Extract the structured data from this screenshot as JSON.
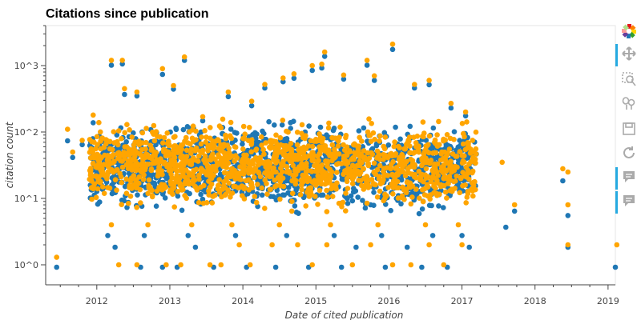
{
  "title": "Citations since publication",
  "colors": {
    "series_a": "#1f77b4",
    "series_b": "#ffa500",
    "tool_icon": "#aaaaaa",
    "active_tool": "#26aae1"
  },
  "toolbar": {
    "tools": [
      {
        "name": "bokeh-logo",
        "active": false
      },
      {
        "name": "pan-icon",
        "active": true
      },
      {
        "name": "box-zoom-icon",
        "active": false
      },
      {
        "name": "wheel-zoom-icon",
        "active": false
      },
      {
        "name": "save-icon",
        "active": false
      },
      {
        "name": "reset-icon",
        "active": false
      },
      {
        "name": "hover-icon",
        "active": true
      },
      {
        "name": "hover-icon",
        "active": true
      }
    ]
  },
  "chart_data": {
    "type": "scatter",
    "title": "Citations since publication",
    "xlabel": "Date of cited publication",
    "ylabel": "citation count",
    "x_tick_labels": [
      "2012",
      "2013",
      "2014",
      "2015",
      "2016",
      "2017",
      "2018",
      "2019"
    ],
    "y_tick_labels": [
      "10^0",
      "10^1",
      "10^2",
      "10^3"
    ],
    "y_scale": "log",
    "xlim": [
      2011.3,
      2019.1
    ],
    "ylim": [
      0.5,
      4000
    ],
    "grid": false,
    "legend": "none",
    "series": [
      {
        "color": "#1f77b4",
        "points": [
          [
            2011.45,
            1
          ],
          [
            2011.6,
            80
          ],
          [
            2011.67,
            45
          ],
          [
            2011.8,
            70
          ],
          [
            2011.95,
            150
          ],
          [
            2012.2,
            1100
          ],
          [
            2012.35,
            1150
          ],
          [
            2012.38,
            400
          ],
          [
            2012.55,
            380
          ],
          [
            2012.9,
            800
          ],
          [
            2013.2,
            1300
          ],
          [
            2013.05,
            480
          ],
          [
            2013.45,
            160
          ],
          [
            2013.8,
            370
          ],
          [
            2014.12,
            270
          ],
          [
            2014.3,
            500
          ],
          [
            2014.55,
            620
          ],
          [
            2014.7,
            700
          ],
          [
            2014.95,
            920
          ],
          [
            2015.08,
            1000
          ],
          [
            2015.12,
            1500
          ],
          [
            2015.38,
            680
          ],
          [
            2015.7,
            1100
          ],
          [
            2015.8,
            650
          ],
          [
            2016.05,
            1900
          ],
          [
            2016.35,
            500
          ],
          [
            2016.55,
            560
          ],
          [
            2016.85,
            250
          ],
          [
            2017.05,
            190
          ],
          [
            2017.6,
            4
          ],
          [
            2017.72,
            7
          ],
          [
            2018.38,
            20
          ],
          [
            2018.45,
            6
          ],
          [
            2018.45,
            2
          ],
          [
            2019.1,
            1
          ],
          [
            2012.25,
            2
          ],
          [
            2012.6,
            1
          ],
          [
            2012.9,
            1
          ],
          [
            2013.1,
            1
          ],
          [
            2013.35,
            2
          ],
          [
            2013.6,
            1
          ],
          [
            2014.05,
            1
          ],
          [
            2014.45,
            1
          ],
          [
            2014.9,
            1
          ],
          [
            2015.35,
            1
          ],
          [
            2015.55,
            2
          ],
          [
            2015.95,
            1
          ],
          [
            2016.25,
            2
          ],
          [
            2016.45,
            1
          ],
          [
            2016.8,
            1
          ],
          [
            2017.1,
            2
          ],
          [
            2012.15,
            3
          ],
          [
            2012.65,
            3
          ],
          [
            2013.25,
            3
          ],
          [
            2013.9,
            3
          ],
          [
            2014.6,
            3
          ],
          [
            2015.25,
            3
          ],
          [
            2015.9,
            3
          ],
          [
            2016.6,
            3
          ],
          [
            2017.0,
            3
          ]
        ]
      },
      {
        "color": "#ffa500",
        "points": [
          [
            2011.45,
            1.3
          ],
          [
            2011.6,
            110
          ],
          [
            2011.67,
            50
          ],
          [
            2011.8,
            75
          ],
          [
            2011.95,
            180
          ],
          [
            2012.2,
            1200
          ],
          [
            2012.35,
            1200
          ],
          [
            2012.38,
            450
          ],
          [
            2012.55,
            400
          ],
          [
            2012.9,
            900
          ],
          [
            2013.2,
            1350
          ],
          [
            2013.05,
            500
          ],
          [
            2013.45,
            170
          ],
          [
            2013.8,
            400
          ],
          [
            2014.12,
            290
          ],
          [
            2014.3,
            520
          ],
          [
            2014.55,
            650
          ],
          [
            2014.7,
            750
          ],
          [
            2014.95,
            1000
          ],
          [
            2015.08,
            1050
          ],
          [
            2015.12,
            1600
          ],
          [
            2015.38,
            720
          ],
          [
            2015.7,
            1200
          ],
          [
            2015.8,
            700
          ],
          [
            2016.05,
            2100
          ],
          [
            2016.35,
            520
          ],
          [
            2016.55,
            600
          ],
          [
            2016.85,
            270
          ],
          [
            2017.05,
            200
          ],
          [
            2017.55,
            35
          ],
          [
            2017.72,
            8
          ],
          [
            2018.38,
            28
          ],
          [
            2018.45,
            25
          ],
          [
            2018.45,
            8
          ],
          [
            2018.45,
            2
          ],
          [
            2019.12,
            2
          ],
          [
            2012.3,
            1
          ],
          [
            2012.55,
            1
          ],
          [
            2012.95,
            1
          ],
          [
            2013.15,
            1
          ],
          [
            2013.55,
            1
          ],
          [
            2013.7,
            1
          ],
          [
            2013.95,
            2
          ],
          [
            2014.1,
            1
          ],
          [
            2014.4,
            2
          ],
          [
            2014.75,
            2
          ],
          [
            2014.95,
            1
          ],
          [
            2015.15,
            2
          ],
          [
            2015.5,
            1
          ],
          [
            2015.75,
            2
          ],
          [
            2016.05,
            1
          ],
          [
            2016.3,
            1
          ],
          [
            2016.55,
            2
          ],
          [
            2016.75,
            1
          ],
          [
            2017.0,
            2
          ],
          [
            2012.2,
            4
          ],
          [
            2012.7,
            4
          ],
          [
            2013.3,
            4
          ],
          [
            2013.85,
            4
          ],
          [
            2014.5,
            4
          ],
          [
            2015.2,
            4
          ],
          [
            2015.85,
            4
          ],
          [
            2016.5,
            4
          ],
          [
            2016.95,
            4
          ]
        ]
      }
    ],
    "cloud": {
      "x_range": [
        2011.9,
        2017.2
      ],
      "y_range": [
        5,
        200
      ],
      "points_per_series": 1400
    }
  }
}
